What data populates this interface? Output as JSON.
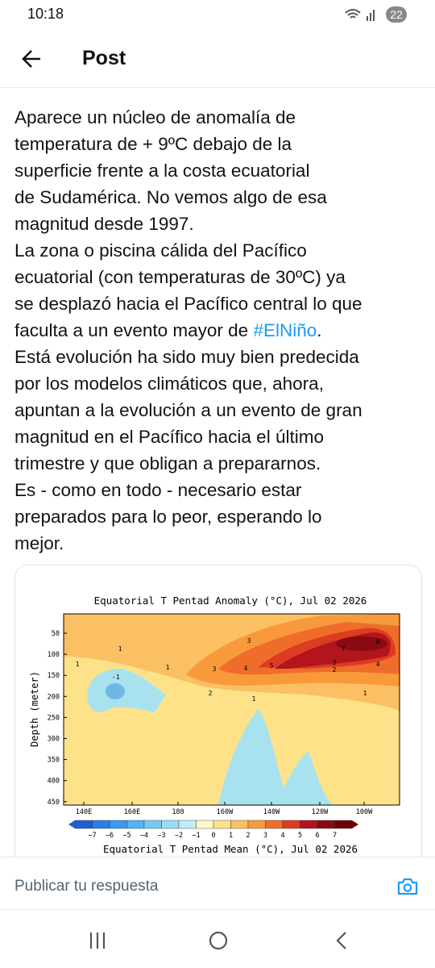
{
  "status_bar": {
    "time": "10:18",
    "battery": "22"
  },
  "header": {
    "title": "Post"
  },
  "post": {
    "lines": [
      "Aparece un núcleo de anomalía de",
      "temperatura de + 9ºC debajo de la",
      "superficie frente a la costa ecuatorial",
      "de Sudamérica. No vemos algo de esa",
      "magnitud desde 1997.",
      "La zona o piscina cálida del Pacífico",
      "ecuatorial (con temperaturas de 30ºC) ya",
      "se desplazó hacia el Pacífico central lo que",
      {
        "before": "faculta a un evento mayor de ",
        "hashtag": "#ElNiño",
        "after": "."
      },
      "Está evolución ha sido muy bien predecida",
      "por los modelos climáticos que, ahora,",
      "apuntan a la evolución a un evento de gran",
      "magnitud en el Pacífico hacia el último",
      "trimestre y que obligan a prepararnos.",
      "Es - como en todo - necesario estar",
      "preparados para lo peor, esperando lo",
      "mejor."
    ],
    "image": {
      "title": "Equatorial T Pentad Anomaly (°C), Jul 02 2026",
      "y_label": "Depth (meter)",
      "y_ticks": [
        50,
        100,
        150,
        200,
        250,
        300,
        350,
        400,
        450
      ],
      "x_ticks": [
        "140E",
        "160E",
        "180",
        "160W",
        "140W",
        "120W",
        "100W"
      ],
      "colorbar_ticks": [
        "−7",
        "−6",
        "−5",
        "−4",
        "−3",
        "−2",
        "−1",
        "0",
        "1",
        "2",
        "3",
        "4",
        "5",
        "6",
        "7"
      ],
      "contour_labels": [
        "1",
        "1",
        "1",
        "3",
        "4",
        "5",
        "3",
        "7",
        "8",
        "3",
        "2",
        "4",
        "2",
        "1",
        "1",
        "-1"
      ],
      "subtitle": "Equatorial T Pentad Mean (°C), Jul 02 2026"
    }
  },
  "reply": {
    "placeholder": "Publicar tu respuesta"
  }
}
